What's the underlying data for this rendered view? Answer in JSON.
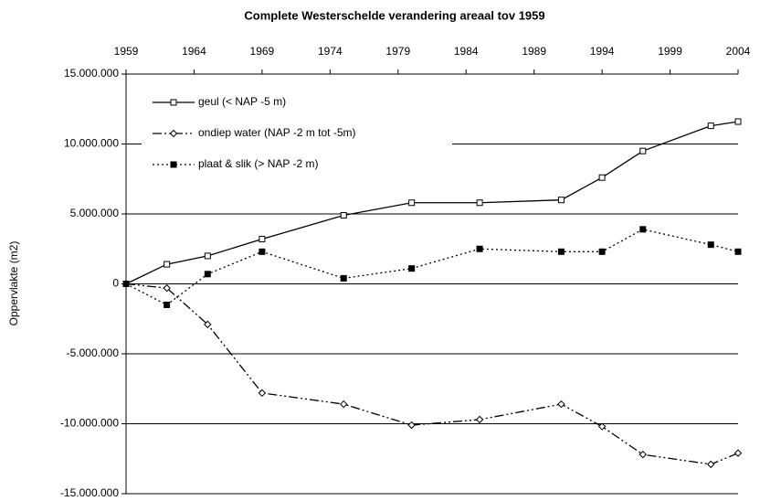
{
  "chart_data": {
    "type": "line",
    "title": "Complete Westerschelde verandering areaal tov 1959",
    "ylabel": "Oppervlakte (m2)",
    "x": [
      1959,
      1962,
      1965,
      1969,
      1975,
      1980,
      1985,
      1991,
      1994,
      1997,
      2002,
      2004
    ],
    "series": [
      {
        "name": "geul (< NAP -5 m)",
        "color": "#000000",
        "dash": "solid",
        "marker": "open-square",
        "values": [
          0,
          1400000,
          2000000,
          3200000,
          4900000,
          5800000,
          5800000,
          6000000,
          7600000,
          9500000,
          11300000,
          11600000
        ]
      },
      {
        "name": "ondiep water (NAP -2 m tot -5m)",
        "color": "#000000",
        "dash": "dash-dot-dot",
        "marker": "open-diamond",
        "values": [
          0,
          -300000,
          -2900000,
          -7800000,
          -8600000,
          -10100000,
          -9700000,
          -8600000,
          -10200000,
          -12200000,
          -12900000,
          -12100000
        ]
      },
      {
        "name": "plaat & slik (> NAP -2 m)",
        "color": "#000000",
        "dash": "dotted",
        "marker": "filled-square",
        "values": [
          0,
          -1500000,
          700000,
          2300000,
          400000,
          1100000,
          2500000,
          2300000,
          2300000,
          3900000,
          2800000,
          2300000
        ]
      }
    ],
    "xlim": [
      1959,
      2004
    ],
    "xticks": [
      1959,
      1964,
      1969,
      1974,
      1979,
      1984,
      1989,
      1994,
      1999,
      2004
    ],
    "ylim": [
      -15000000,
      15000000
    ],
    "yticks": [
      {
        "value": -15000000,
        "label": "-15.000.000"
      },
      {
        "value": -10000000,
        "label": "-10.000.000"
      },
      {
        "value": -5000000,
        "label": "-5.000.000"
      },
      {
        "value": 0,
        "label": "0"
      },
      {
        "value": 5000000,
        "label": "5.000.000"
      },
      {
        "value": 10000000,
        "label": "10.000.000"
      },
      {
        "value": 15000000,
        "label": "15.000.000"
      }
    ],
    "grid": true,
    "legend": "upper-left",
    "x_axis_position": "top"
  }
}
